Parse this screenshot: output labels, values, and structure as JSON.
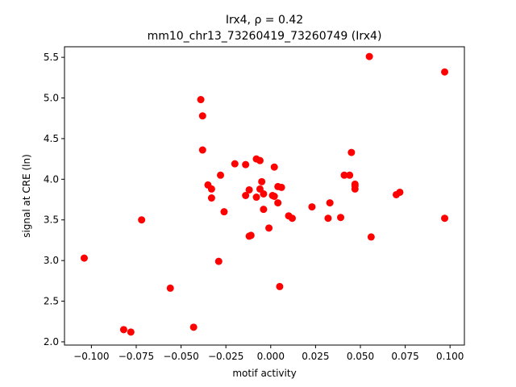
{
  "chart_data": {
    "type": "scatter",
    "title_line1": "Irx4, ρ = 0.42",
    "title_line2": "mm10_chr13_73260419_73260749 (Irx4)",
    "xlabel": "motif activity",
    "ylabel": "signal at CRE (ln)",
    "xlim": [
      -0.115,
      0.108
    ],
    "ylim": [
      1.96,
      5.63
    ],
    "x_ticks": [
      -0.1,
      -0.075,
      -0.05,
      -0.025,
      0.0,
      0.025,
      0.05,
      0.075,
      0.1
    ],
    "x_tick_labels": [
      "−0.100",
      "−0.075",
      "−0.050",
      "−0.025",
      "0.000",
      "0.025",
      "0.050",
      "0.075",
      "0.100"
    ],
    "y_ticks": [
      2.0,
      2.5,
      3.0,
      3.5,
      4.0,
      4.5,
      5.0,
      5.5
    ],
    "y_tick_labels": [
      "2.0",
      "2.5",
      "3.0",
      "3.5",
      "4.0",
      "4.5",
      "5.0",
      "5.5"
    ],
    "grid": false,
    "marker_color": "#ff0000",
    "points": [
      [
        -0.104,
        3.03
      ],
      [
        -0.082,
        2.15
      ],
      [
        -0.078,
        2.12
      ],
      [
        -0.072,
        3.5
      ],
      [
        -0.056,
        2.66
      ],
      [
        -0.043,
        2.18
      ],
      [
        -0.039,
        4.98
      ],
      [
        -0.038,
        4.78
      ],
      [
        -0.038,
        4.36
      ],
      [
        -0.035,
        3.93
      ],
      [
        -0.033,
        3.88
      ],
      [
        -0.033,
        3.77
      ],
      [
        -0.029,
        2.99
      ],
      [
        -0.028,
        4.05
      ],
      [
        -0.026,
        3.6
      ],
      [
        -0.02,
        4.19
      ],
      [
        -0.014,
        4.18
      ],
      [
        -0.014,
        3.8
      ],
      [
        -0.012,
        3.87
      ],
      [
        -0.012,
        3.3
      ],
      [
        -0.011,
        3.31
      ],
      [
        -0.008,
        4.25
      ],
      [
        -0.008,
        3.78
      ],
      [
        -0.006,
        4.23
      ],
      [
        -0.006,
        3.88
      ],
      [
        -0.005,
        3.97
      ],
      [
        -0.004,
        3.82
      ],
      [
        -0.004,
        3.63
      ],
      [
        -0.001,
        3.4
      ],
      [
        0.001,
        3.8
      ],
      [
        0.002,
        4.15
      ],
      [
        0.002,
        3.79
      ],
      [
        0.004,
        3.71
      ],
      [
        0.004,
        3.91
      ],
      [
        0.005,
        2.68
      ],
      [
        0.006,
        3.9
      ],
      [
        0.01,
        3.55
      ],
      [
        0.012,
        3.52
      ],
      [
        0.023,
        3.66
      ],
      [
        0.032,
        3.52
      ],
      [
        0.033,
        3.71
      ],
      [
        0.039,
        3.53
      ],
      [
        0.041,
        4.05
      ],
      [
        0.044,
        4.05
      ],
      [
        0.045,
        4.33
      ],
      [
        0.047,
        3.92
      ],
      [
        0.047,
        3.94
      ],
      [
        0.047,
        3.88
      ],
      [
        0.055,
        5.51
      ],
      [
        0.056,
        3.29
      ],
      [
        0.07,
        3.81
      ],
      [
        0.072,
        3.84
      ],
      [
        0.097,
        5.32
      ],
      [
        0.097,
        3.52
      ]
    ]
  }
}
